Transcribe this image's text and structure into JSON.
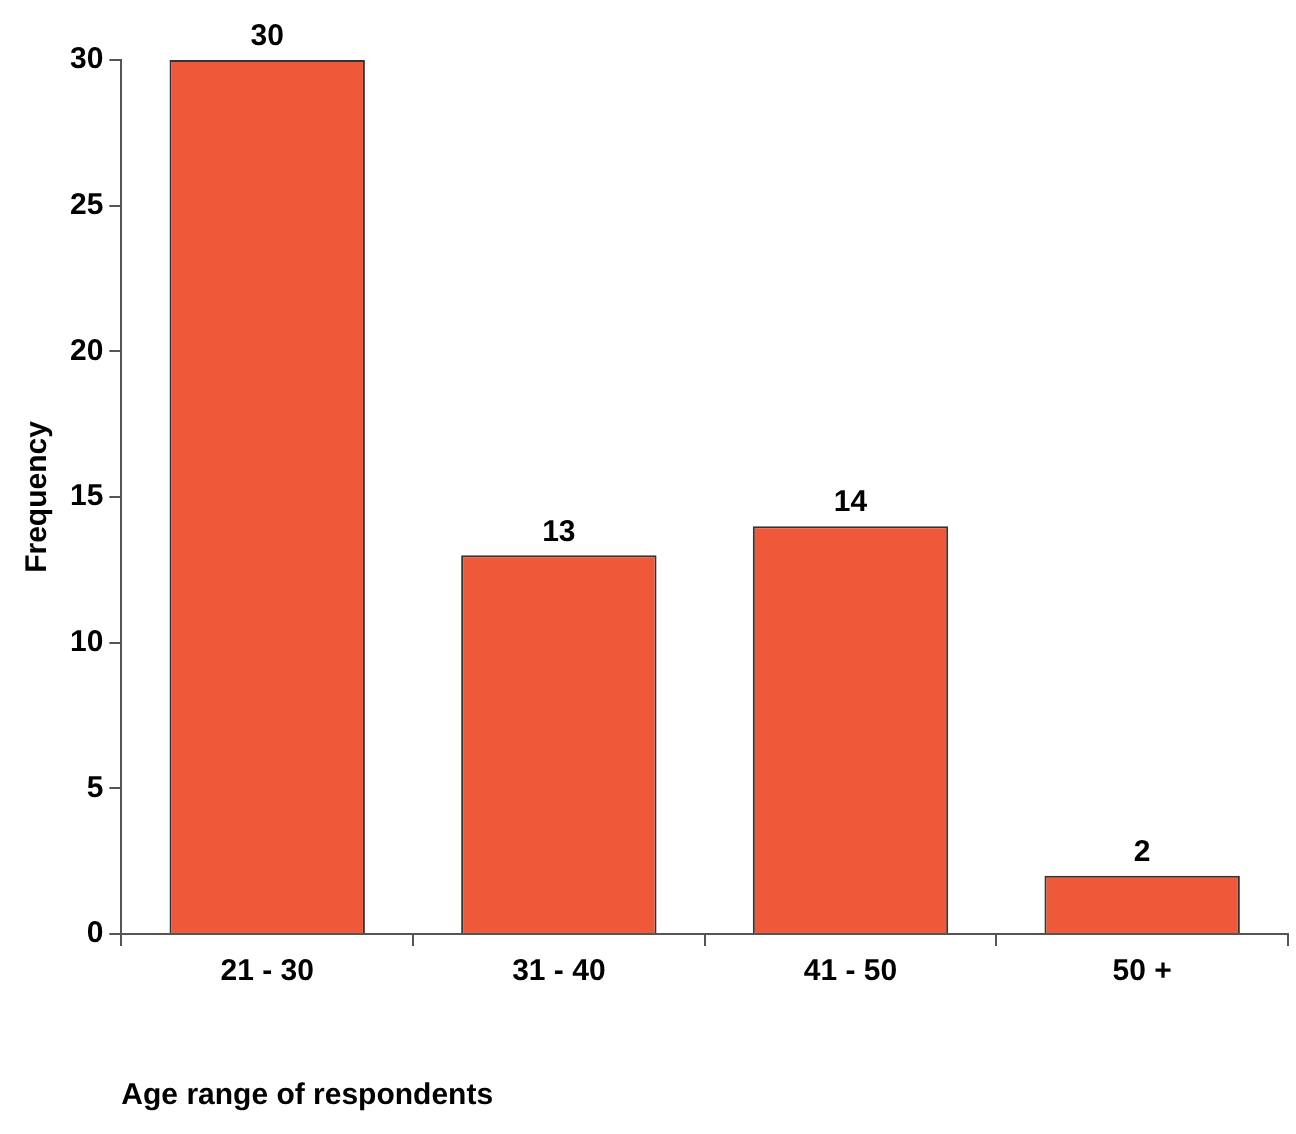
{
  "chart_data": {
    "type": "bar",
    "xlabel": "Age range of respondents",
    "ylabel": "Frequency",
    "categories": [
      "21 - 30",
      "31 - 40",
      "41 - 50",
      "50 +"
    ],
    "values": [
      30,
      13,
      14,
      2
    ],
    "color": "#f0583a",
    "ylim": [
      0,
      30
    ],
    "yticks": [
      0,
      5,
      10,
      15,
      20,
      25,
      30
    ],
    "grid": false,
    "legend": false,
    "data_labels": true
  }
}
